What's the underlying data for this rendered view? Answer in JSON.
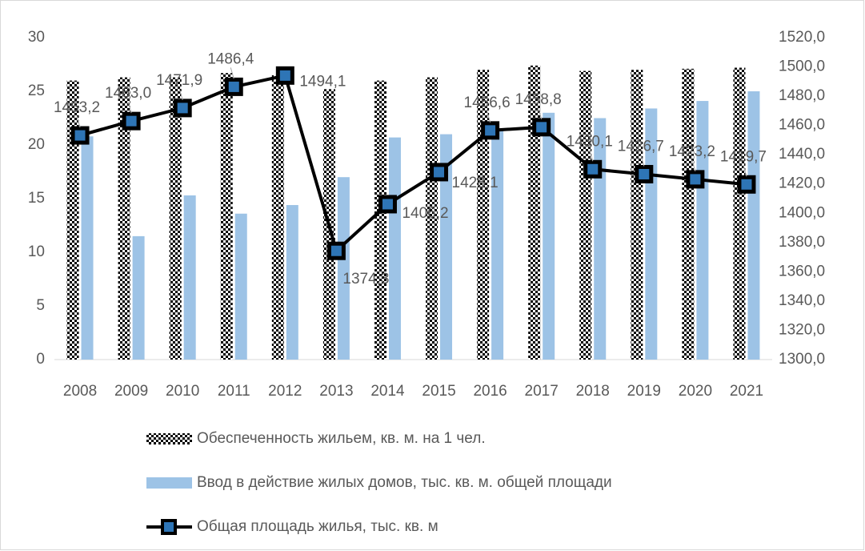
{
  "chart_data": {
    "type": "bar",
    "categories": [
      "2008",
      "2009",
      "2010",
      "2011",
      "2012",
      "2013",
      "2014",
      "2015",
      "2016",
      "2017",
      "2018",
      "2019",
      "2020",
      "2021"
    ],
    "series": [
      {
        "name": "Обеспеченность жильем, кв. м. на 1 чел.",
        "color": "#000000",
        "pattern": "checker",
        "values": [
          26.0,
          26.3,
          26.3,
          26.7,
          26.5,
          25.2,
          26.0,
          26.3,
          27.0,
          27.4,
          26.9,
          27.0,
          27.1,
          27.2
        ]
      },
      {
        "name": "Ввод в действие жилых домов, тыс. кв. м. общей площади",
        "color": "#9dc3e6",
        "values": [
          20.8,
          11.5,
          15.3,
          13.6,
          14.4,
          17.0,
          20.7,
          21.0,
          21.5,
          23.0,
          22.5,
          23.4,
          24.1,
          25.0
        ]
      },
      {
        "name": "Общая площадь жилья, тыс. кв. м",
        "color": "#000000",
        "type": "line",
        "axis": "y2",
        "values": [
          1453.2,
          1463.0,
          1471.9,
          1486.4,
          1494.1,
          1374.3,
          1406.2,
          1428.1,
          1456.6,
          1458.8,
          1430.1,
          1426.7,
          1423.2,
          1419.7
        ],
        "value_labels": [
          "1453,2",
          "1463,0",
          "1471,9",
          "1486,4",
          "1494,1",
          "1374,3",
          "1406,2",
          "1428,1",
          "1456,6",
          "1458,8",
          "1430,1",
          "1426,7",
          "1423,2",
          "1419,7"
        ]
      }
    ],
    "ylim": [
      0,
      30
    ],
    "yticks": [
      0,
      5,
      10,
      15,
      20,
      25,
      30
    ],
    "y2lim": [
      1300,
      1520
    ],
    "y2ticks": [
      {
        "value": 1300,
        "label": "1300,0"
      },
      {
        "value": 1320,
        "label": "1320,0"
      },
      {
        "value": 1340,
        "label": "1340,0"
      },
      {
        "value": 1360,
        "label": "1360,0"
      },
      {
        "value": 1380,
        "label": "1380,0"
      },
      {
        "value": 1400,
        "label": "1400,0"
      },
      {
        "value": 1420,
        "label": "1420,0"
      },
      {
        "value": 1440,
        "label": "1440,0"
      },
      {
        "value": 1460,
        "label": "1460,0"
      },
      {
        "value": 1480,
        "label": "1480,0"
      },
      {
        "value": 1500,
        "label": "1500,0"
      },
      {
        "value": 1520,
        "label": "1520,0"
      }
    ],
    "grid": false,
    "legend": "bottom"
  }
}
